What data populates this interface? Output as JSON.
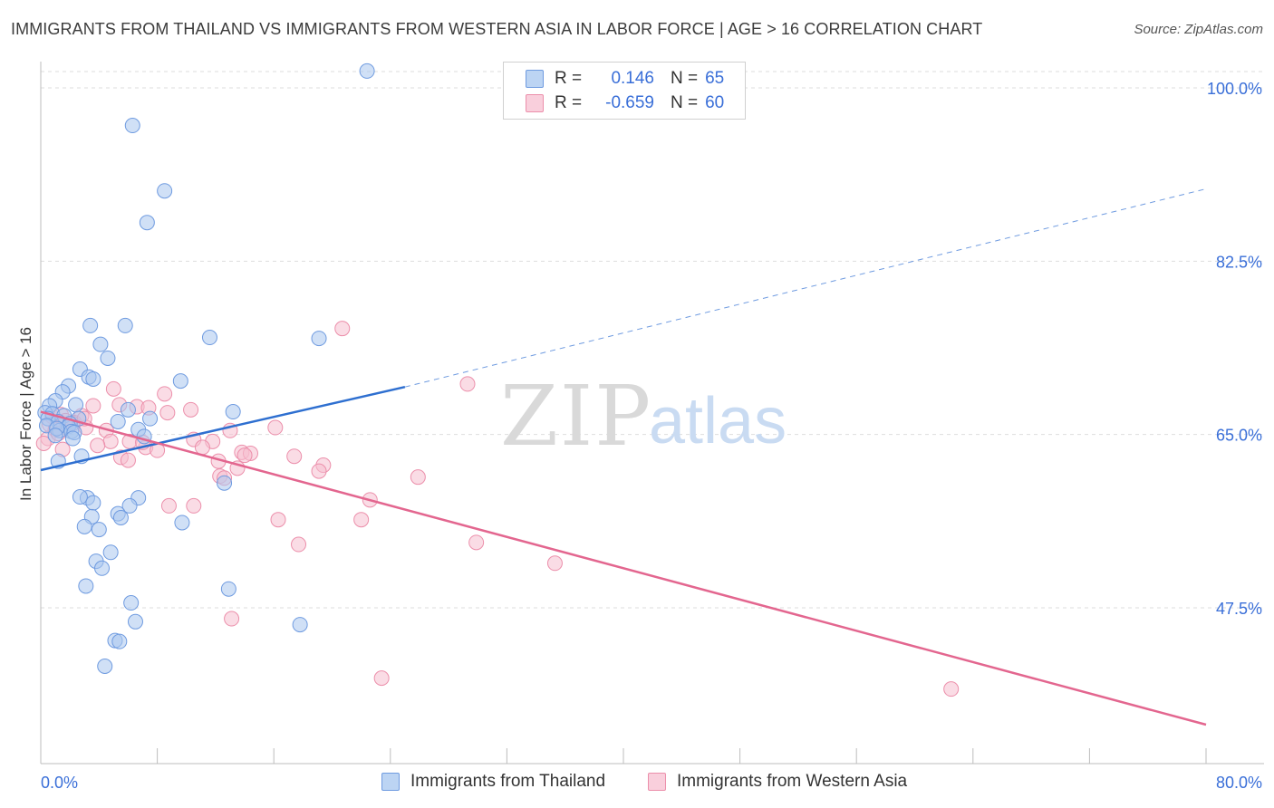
{
  "title": "IMMIGRANTS FROM THAILAND VS IMMIGRANTS FROM WESTERN ASIA IN LABOR FORCE | AGE > 16 CORRELATION CHART",
  "source": "Source: ZipAtlas.com",
  "watermark": {
    "zip": "ZIP",
    "atlas": "atlas"
  },
  "legend": {
    "r_label": "R =",
    "n_label": "N =",
    "series1": {
      "r": "0.146",
      "n": "65"
    },
    "series2": {
      "r": "-0.659",
      "n": "60"
    }
  },
  "colors": {
    "series1_fill": "#a9c6ee",
    "series1_stroke": "#6f9be0",
    "series1_line": "#2e6fd0",
    "series2_fill": "#f6bfd0",
    "series2_stroke": "#ec8fab",
    "series2_line": "#e3668f",
    "tick_label": "#3a6fd8"
  },
  "chart_data": {
    "type": "scatter",
    "title": "IMMIGRANTS FROM THAILAND VS IMMIGRANTS FROM WESTERN ASIA IN LABOR FORCE | AGE > 16 CORRELATION CHART",
    "xlabel": "",
    "ylabel": "In Labor Force | Age > 16",
    "xlim": [
      0,
      80
    ],
    "ylim": [
      30,
      101.5
    ],
    "x_tick_labels": [
      "0.0%",
      "80.0%"
    ],
    "y_ticks": [
      47.5,
      65.0,
      82.5,
      100.0
    ],
    "y_tick_labels": [
      "47.5%",
      "65.0%",
      "82.5%",
      "100.0%"
    ],
    "grid": true,
    "legend_position": "top-center",
    "series": [
      {
        "name": "Immigrants from Thailand",
        "r": 0.146,
        "n": 65,
        "trend": {
          "x0": 0,
          "y0": 61.4,
          "x1": 25,
          "y1": 69.8,
          "dashed_to_x": 80,
          "dashed_to_y": 89.8
        },
        "points": [
          [
            22.4,
            101.7
          ],
          [
            6.3,
            96.2
          ],
          [
            8.5,
            89.6
          ],
          [
            7.3,
            86.4
          ],
          [
            3.4,
            76.0
          ],
          [
            5.8,
            76.0
          ],
          [
            11.6,
            74.8
          ],
          [
            19.1,
            74.7
          ],
          [
            4.1,
            74.1
          ],
          [
            4.6,
            72.7
          ],
          [
            2.7,
            71.6
          ],
          [
            3.3,
            70.8
          ],
          [
            3.6,
            70.6
          ],
          [
            9.6,
            70.4
          ],
          [
            1.9,
            69.9
          ],
          [
            1.5,
            69.3
          ],
          [
            1.0,
            68.4
          ],
          [
            2.4,
            68.0
          ],
          [
            0.6,
            67.9
          ],
          [
            0.3,
            67.2
          ],
          [
            0.8,
            67.1
          ],
          [
            1.6,
            66.9
          ],
          [
            2.6,
            66.6
          ],
          [
            13.2,
            67.3
          ],
          [
            0.5,
            66.6
          ],
          [
            1.2,
            66.3
          ],
          [
            2.0,
            66.1
          ],
          [
            0.4,
            65.9
          ],
          [
            1.9,
            65.8
          ],
          [
            6.7,
            65.5
          ],
          [
            1.3,
            65.4
          ],
          [
            1.1,
            65.6
          ],
          [
            2.1,
            65.3
          ],
          [
            1.0,
            64.9
          ],
          [
            5.3,
            66.3
          ],
          [
            6.0,
            67.5
          ],
          [
            2.3,
            65.2
          ],
          [
            7.1,
            64.8
          ],
          [
            2.2,
            64.6
          ],
          [
            7.5,
            66.6
          ],
          [
            2.8,
            62.8
          ],
          [
            1.2,
            62.3
          ],
          [
            12.6,
            60.1
          ],
          [
            3.2,
            58.6
          ],
          [
            2.7,
            58.7
          ],
          [
            6.7,
            58.6
          ],
          [
            3.6,
            58.1
          ],
          [
            6.1,
            57.8
          ],
          [
            3.5,
            56.7
          ],
          [
            5.3,
            57.0
          ],
          [
            5.5,
            56.6
          ],
          [
            3.0,
            55.7
          ],
          [
            4.0,
            55.4
          ],
          [
            9.7,
            56.1
          ],
          [
            4.8,
            53.1
          ],
          [
            3.8,
            52.2
          ],
          [
            4.2,
            51.5
          ],
          [
            3.1,
            49.7
          ],
          [
            12.9,
            49.4
          ],
          [
            6.2,
            48.0
          ],
          [
            6.5,
            46.1
          ],
          [
            17.8,
            45.8
          ],
          [
            5.1,
            44.2
          ],
          [
            5.4,
            44.1
          ],
          [
            4.4,
            41.6
          ]
        ]
      },
      {
        "name": "Immigrants from Western Asia",
        "r": -0.659,
        "n": 60,
        "trend": {
          "x0": 0,
          "y0": 67.3,
          "x1": 80,
          "y1": 35.7
        },
        "points": [
          [
            20.7,
            75.7
          ],
          [
            29.3,
            70.1
          ],
          [
            5.0,
            69.6
          ],
          [
            8.5,
            69.1
          ],
          [
            0.8,
            66.8
          ],
          [
            5.4,
            68.0
          ],
          [
            3.6,
            67.9
          ],
          [
            6.6,
            67.8
          ],
          [
            10.3,
            67.5
          ],
          [
            1.4,
            67.0
          ],
          [
            2.8,
            66.9
          ],
          [
            7.4,
            67.7
          ],
          [
            0.6,
            66.0
          ],
          [
            1.7,
            66.4
          ],
          [
            2.3,
            66.2
          ],
          [
            3.1,
            65.7
          ],
          [
            1.0,
            65.5
          ],
          [
            0.5,
            64.6
          ],
          [
            4.5,
            65.4
          ],
          [
            8.7,
            67.2
          ],
          [
            16.1,
            65.7
          ],
          [
            13.0,
            65.4
          ],
          [
            4.8,
            64.3
          ],
          [
            6.1,
            64.3
          ],
          [
            10.5,
            64.5
          ],
          [
            11.8,
            64.3
          ],
          [
            7.2,
            63.7
          ],
          [
            8.0,
            63.4
          ],
          [
            3.9,
            63.9
          ],
          [
            11.1,
            63.7
          ],
          [
            13.8,
            63.2
          ],
          [
            14.4,
            63.1
          ],
          [
            14.0,
            62.9
          ],
          [
            17.4,
            62.8
          ],
          [
            12.2,
            62.3
          ],
          [
            5.5,
            62.7
          ],
          [
            6.0,
            62.4
          ],
          [
            19.4,
            61.9
          ],
          [
            13.5,
            61.6
          ],
          [
            19.1,
            61.3
          ],
          [
            25.9,
            60.7
          ],
          [
            12.3,
            60.8
          ],
          [
            12.6,
            60.6
          ],
          [
            22.6,
            58.4
          ],
          [
            8.8,
            57.8
          ],
          [
            10.5,
            57.8
          ],
          [
            16.3,
            56.4
          ],
          [
            22.0,
            56.4
          ],
          [
            17.7,
            53.9
          ],
          [
            29.9,
            54.1
          ],
          [
            35.3,
            52.0
          ],
          [
            13.1,
            46.4
          ],
          [
            23.4,
            40.4
          ],
          [
            62.5,
            39.3
          ],
          [
            1.5,
            63.5
          ],
          [
            2.2,
            66.1
          ],
          [
            7.0,
            64.2
          ],
          [
            3.0,
            66.6
          ],
          [
            0.2,
            64.1
          ],
          [
            1.2,
            65.1
          ]
        ]
      }
    ]
  }
}
